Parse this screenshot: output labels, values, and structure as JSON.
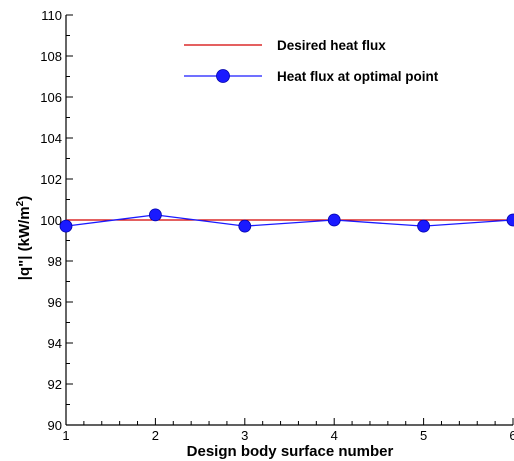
{
  "chart_data": {
    "type": "line",
    "xlabel": "Design body surface number",
    "ylabel_main": "|q\"| (kW/m",
    "ylabel_sup": "2",
    "ylabel_close": ")",
    "xlim": [
      1,
      6
    ],
    "ylim": [
      90,
      110
    ],
    "x_ticks": [
      1,
      2,
      3,
      4,
      5,
      6
    ],
    "y_ticks": [
      90,
      92,
      94,
      96,
      98,
      100,
      102,
      104,
      106,
      108,
      110
    ],
    "grid": false,
    "legend_position": "top-right",
    "series": [
      {
        "name": "Desired heat flux",
        "color": "#d40000",
        "marker": "none",
        "x": [
          1,
          2,
          3,
          4,
          5,
          6
        ],
        "values": [
          100,
          100,
          100,
          100,
          100,
          100
        ]
      },
      {
        "name": "Heat flux at optimal point",
        "color": "#1a1aff",
        "marker": "circle",
        "x": [
          1,
          2,
          3,
          4,
          5,
          6
        ],
        "values": [
          99.7,
          100.25,
          99.7,
          100,
          99.7,
          100
        ]
      }
    ]
  }
}
